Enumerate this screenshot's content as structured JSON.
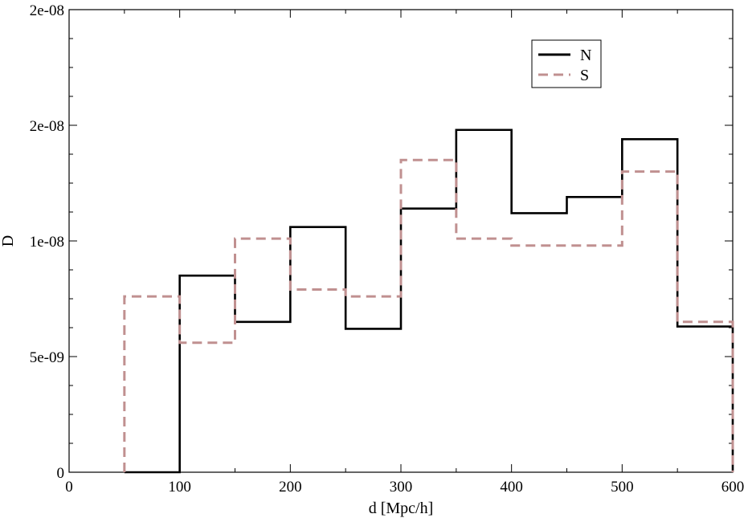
{
  "chart_data": {
    "type": "line",
    "step": "histogram",
    "xlabel": "d [Mpc/h]",
    "ylabel": "D",
    "xlim": [
      0,
      600
    ],
    "ylim": [
      0,
      2e-08
    ],
    "x_ticks": [
      0,
      100,
      200,
      300,
      400,
      500,
      600
    ],
    "x_tick_labels": [
      "0",
      "100",
      "200",
      "300",
      "400",
      "500",
      "600"
    ],
    "y_ticks": [
      0,
      5e-09,
      1e-08,
      1.5e-08,
      2e-08
    ],
    "y_tick_labels": [
      "0",
      "5e-09",
      "1e-08",
      "2e-08",
      "2e-08"
    ],
    "grid": false,
    "legend_position": "top-right",
    "bin_edges": [
      50,
      100,
      150,
      200,
      250,
      300,
      350,
      400,
      450,
      500,
      550,
      600
    ],
    "series": [
      {
        "name": "N",
        "color": "#000000",
        "style": "solid",
        "values": [
          0,
          8.5e-09,
          6.5e-09,
          1.06e-08,
          6.2e-09,
          1.14e-08,
          1.48e-08,
          1.12e-08,
          1.19e-08,
          1.44e-08,
          6.3e-09
        ]
      },
      {
        "name": "S",
        "color": "#c09090",
        "style": "dashed",
        "values": [
          7.6e-09,
          5.6e-09,
          1.01e-08,
          7.9e-09,
          7.6e-09,
          1.35e-08,
          1.01e-08,
          9.8e-09,
          9.8e-09,
          1.3e-08,
          6.5e-09
        ]
      }
    ]
  }
}
